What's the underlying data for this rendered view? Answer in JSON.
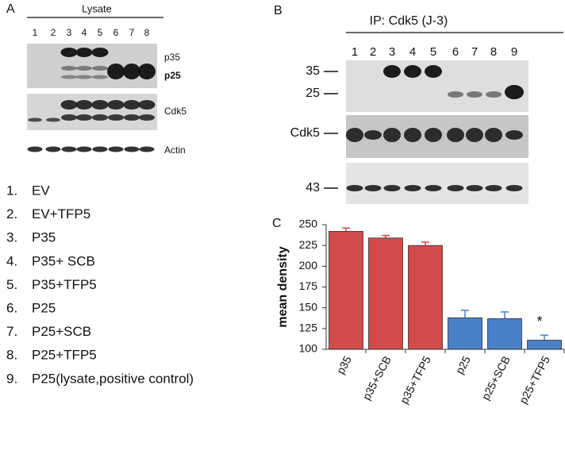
{
  "panel_a": {
    "label": "A",
    "header": "Lysate",
    "lanes": [
      "1",
      "2",
      "3",
      "4",
      "5",
      "6",
      "7",
      "8"
    ],
    "band_labels": [
      "p35",
      "p25",
      "Cdk5",
      "Actin"
    ]
  },
  "panel_b": {
    "label": "B",
    "header": "IP: Cdk5 (J-3)",
    "lanes": [
      "1",
      "2",
      "3",
      "4",
      "5",
      "6",
      "7",
      "8",
      "9"
    ],
    "markers": [
      "35",
      "25",
      "Cdk5",
      "43"
    ]
  },
  "legend": [
    {
      "num": "1.",
      "text": "EV"
    },
    {
      "num": "2.",
      "text": "EV+TFP5"
    },
    {
      "num": "3.",
      "text": "P35"
    },
    {
      "num": "4.",
      "text": "P35+ SCB"
    },
    {
      "num": "5.",
      "text": "P35+TFP5"
    },
    {
      "num": "6.",
      "text": "P25"
    },
    {
      "num": "7.",
      "text": "P25+SCB"
    },
    {
      "num": "8.",
      "text": "P25+TFP5"
    },
    {
      "num": "9.",
      "text": "P25(lysate,positive control)"
    }
  ],
  "chart_data": {
    "type": "bar",
    "panel_label": "C",
    "y_label": "mean density",
    "categories": [
      "p35",
      "p35+SCB",
      "p35+TFP5",
      "p25",
      "p25+SCB",
      "p25+TFP5"
    ],
    "values": [
      242,
      234,
      225,
      138,
      137,
      111
    ],
    "errors": [
      4,
      3,
      4,
      9,
      8,
      6
    ],
    "colors": [
      "#d14b4b",
      "#d14b4b",
      "#d14b4b",
      "#4a80c8",
      "#4a80c8",
      "#4a80c8"
    ],
    "ylim": [
      100,
      250
    ],
    "yticks": [
      100,
      125,
      150,
      175,
      200,
      225,
      250
    ],
    "annotations": [
      {
        "text": "*",
        "category": "p25+TFP5"
      }
    ]
  }
}
